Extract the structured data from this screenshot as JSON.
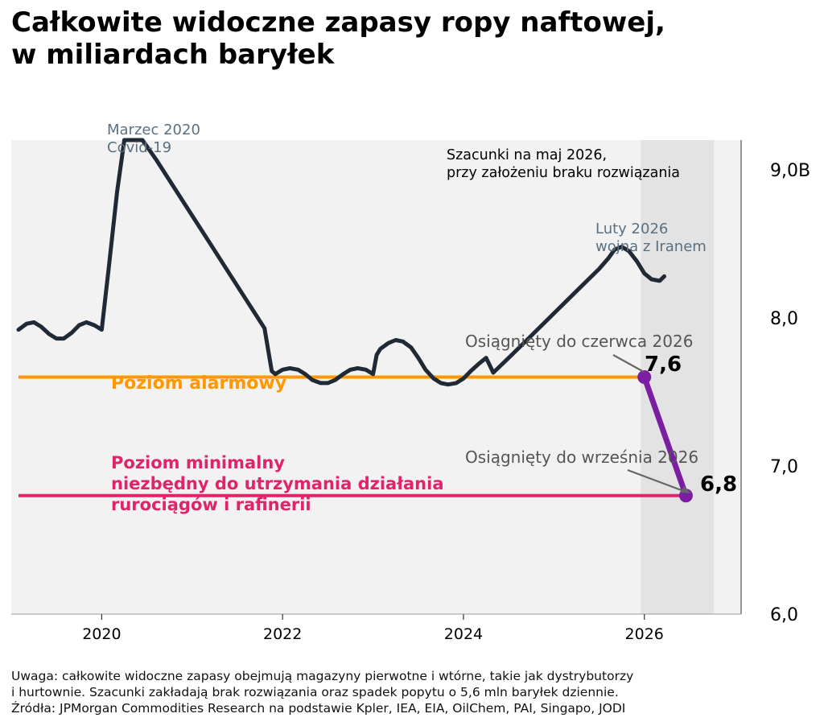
{
  "header": {
    "title_line1": "Całkowite widoczne zapasy ropy naftowej,",
    "title_line2": "w miliardach baryłek"
  },
  "footer": {
    "note_line1": "Uwaga: całkowite widoczne zapasy obejmują magazyny pierwotne i wtórne, takie jak dystrybutorzy",
    "note_line2": "i hurtownie. Szacunki zakładają brak rozwiązania oraz spadek popytu o 5,6 mln baryłek dziennie.",
    "source": "Źródła: JPMorgan Commodities Research na podstawie Kpler, IEA, EIA, OilChem, PAI, Singapo, JODI"
  },
  "chart_data": {
    "type": "line",
    "xlim": [
      2019.0,
      2027.07
    ],
    "ylim": [
      6.0,
      9.2
    ],
    "x_ticks": [
      2020,
      2022,
      2024,
      2026
    ],
    "x_tick_labels": [
      "2020",
      "2022",
      "2024",
      "2026"
    ],
    "y_ticks": [
      9.0,
      8.0,
      7.0,
      6.0
    ],
    "y_tick_labels": [
      "9,0B",
      "8,0",
      "7,0",
      "6,0"
    ],
    "y_axis_side": "right",
    "grid": false,
    "forecast_region": {
      "x_start": 2025.96,
      "x_end": 2026.77,
      "color": "#e3e3e3"
    },
    "colors": {
      "background": "#f2f2f2",
      "series": "#1f2a36",
      "projection": "#7b1fa2",
      "alarm": "#ff9800",
      "minimum": "#e0246a",
      "annotation": "#5a7080",
      "callout": "#555555"
    },
    "series": [
      {
        "x": [
          2019.08,
          2019.17,
          2019.25,
          2019.33,
          2019.42,
          2019.5,
          2019.58,
          2019.67,
          2019.75,
          2019.83,
          2019.92,
          2020.0,
          2020.08,
          2020.17,
          2020.25,
          2020.32,
          2020.38,
          2020.45,
          2020.6,
          2020.8,
          2021.0,
          2021.2,
          2021.4,
          2021.6,
          2021.8,
          2021.88,
          2021.92,
          2022.0,
          2022.08,
          2022.17,
          2022.25,
          2022.33,
          2022.42,
          2022.5,
          2022.58,
          2022.67,
          2022.75,
          2022.83,
          2022.92,
          2023.0,
          2023.04,
          2023.08,
          2023.17,
          2023.25,
          2023.33,
          2023.42,
          2023.5,
          2023.58,
          2023.67,
          2023.75,
          2023.83,
          2023.92,
          2024.0,
          2024.08,
          2024.17,
          2024.25,
          2024.29,
          2024.33,
          2024.5,
          2024.75,
          2025.0,
          2025.25,
          2025.5,
          2025.6,
          2025.67,
          2025.75,
          2025.83,
          2025.92,
          2026.0,
          2026.08,
          2026.17,
          2026.22
        ],
        "values": [
          7.92,
          7.96,
          7.97,
          7.94,
          7.89,
          7.86,
          7.86,
          7.9,
          7.95,
          7.97,
          7.95,
          7.92,
          8.35,
          8.85,
          9.2,
          9.25,
          9.25,
          9.22,
          9.07,
          8.88,
          8.69,
          8.5,
          8.31,
          8.12,
          7.93,
          7.64,
          7.62,
          7.65,
          7.66,
          7.65,
          7.62,
          7.58,
          7.56,
          7.56,
          7.58,
          7.62,
          7.65,
          7.66,
          7.65,
          7.62,
          7.75,
          7.79,
          7.83,
          7.85,
          7.84,
          7.8,
          7.73,
          7.65,
          7.59,
          7.56,
          7.55,
          7.56,
          7.59,
          7.64,
          7.69,
          7.73,
          7.68,
          7.63,
          7.73,
          7.88,
          8.03,
          8.18,
          8.33,
          8.4,
          8.46,
          8.48,
          8.45,
          8.38,
          8.3,
          8.26,
          8.25,
          8.28
        ]
      },
      {
        "x": [
          2026.0,
          2026.46
        ],
        "values": [
          7.6,
          6.8
        ]
      }
    ],
    "reference_lines": [
      {
        "y": 7.6,
        "x_start": 2019.08,
        "x_end": 2026.0,
        "label": "Poziom alarmowy"
      },
      {
        "y": 6.8,
        "x_start": 2019.08,
        "x_end": 2026.46,
        "label_line1": "Poziom minimalny",
        "label_line2": "niezbędny do utrzymania działania",
        "label_line3": "rurociągów i rafinerii"
      }
    ],
    "annotations": {
      "covid_line1": "Marzec 2020",
      "covid_line2": "Covid-19",
      "estimate_line1": "Szacunki na maj 2026,",
      "estimate_line2": "przy założeniu braku rozwiązania",
      "iran_line1": "Luty 2026",
      "iran_line2": "wojna z Iranem",
      "june_callout": "Osiągnięty do czerwca 2026",
      "sept_callout": "Osiągnięty do września 2026",
      "june_value": "7,6",
      "sept_value": "6,8"
    }
  }
}
